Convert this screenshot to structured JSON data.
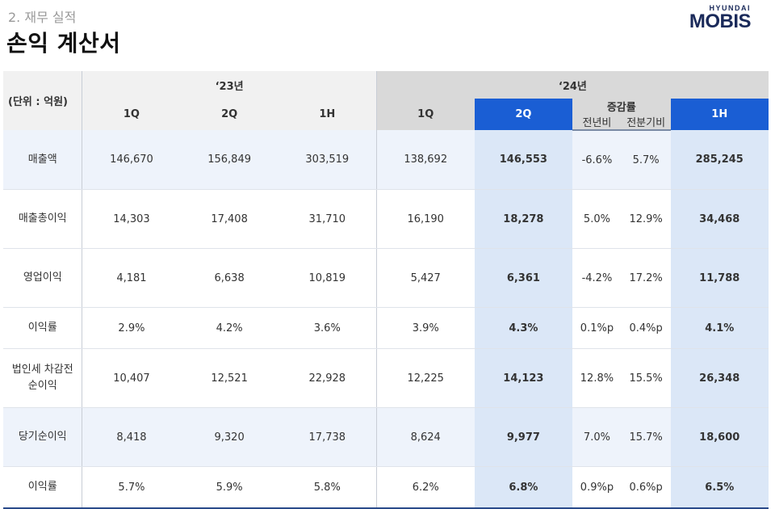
{
  "header": {
    "section": "2. 재무 실적",
    "title": "손익 계산서",
    "logo_top": "HYUNDAI",
    "logo_main": "MOBIS"
  },
  "table": {
    "unit": "(단위 : 억원)",
    "group_23": "‘23년",
    "group_24": "‘24년",
    "cols": {
      "q1_23": "1Q",
      "q2_23": "2Q",
      "h1_23": "1H",
      "q1_24": "1Q",
      "q2_24": "2Q",
      "change": "증감률",
      "yoy": "전년비",
      "qoq": "전분기비",
      "h1_24": "1H"
    },
    "rows": [
      {
        "label": "매출액",
        "q1_23": "146,670",
        "q2_23": "156,849",
        "h1_23": "303,519",
        "q1_24": "138,692",
        "q2_24": "146,553",
        "yoy": "-6.6%",
        "qoq": "5.7%",
        "h1_24": "285,245"
      },
      {
        "label": "매출총이익",
        "q1_23": "14,303",
        "q2_23": "17,408",
        "h1_23": "31,710",
        "q1_24": "16,190",
        "q2_24": "18,278",
        "yoy": "5.0%",
        "qoq": "12.9%",
        "h1_24": "34,468"
      },
      {
        "label": "영업이익",
        "q1_23": "4,181",
        "q2_23": "6,638",
        "h1_23": "10,819",
        "q1_24": "5,427",
        "q2_24": "6,361",
        "yoy": "-4.2%",
        "qoq": "17.2%",
        "h1_24": "11,788"
      },
      {
        "label": "이익률",
        "q1_23": "2.9%",
        "q2_23": "4.2%",
        "h1_23": "3.6%",
        "q1_24": "3.9%",
        "q2_24": "4.3%",
        "yoy": "0.1%p",
        "qoq": "0.4%p",
        "h1_24": "4.1%"
      },
      {
        "label_line1": "법인세 차감전",
        "label_line2": "순이익",
        "q1_23": "10,407",
        "q2_23": "12,521",
        "h1_23": "22,928",
        "q1_24": "12,225",
        "q2_24": "14,123",
        "yoy": "12.8%",
        "qoq": "15.5%",
        "h1_24": "26,348"
      },
      {
        "label": "당기순이익",
        "q1_23": "8,418",
        "q2_23": "9,320",
        "h1_23": "17,738",
        "q1_24": "8,624",
        "q2_24": "9,977",
        "yoy": "7.0%",
        "qoq": "15.7%",
        "h1_24": "18,600"
      },
      {
        "label": "이익률",
        "q1_23": "5.7%",
        "q2_23": "5.9%",
        "h1_23": "5.8%",
        "q1_24": "6.2%",
        "q2_24": "6.8%",
        "yoy": "0.9%p",
        "qoq": "0.6%p",
        "h1_24": "6.5%"
      }
    ],
    "colors": {
      "accent_blue": "#1a5ed4",
      "highlight": "#dbe7f7",
      "row_shade": "#eef3fb"
    }
  }
}
